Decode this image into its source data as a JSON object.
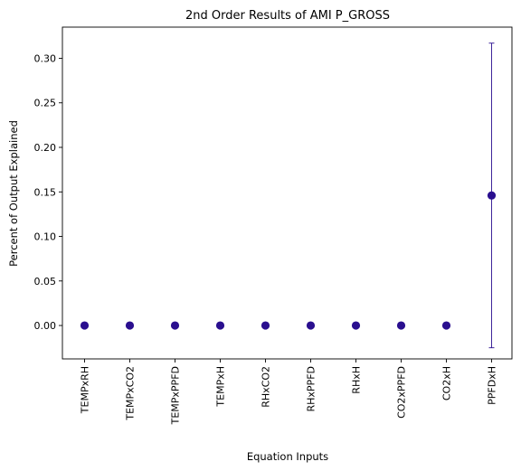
{
  "chart_data": {
    "type": "scatter",
    "title": "2nd Order Results of AMI P_GROSS",
    "xlabel": "Equation Inputs",
    "ylabel": "Percent of Output Explained",
    "categories": [
      "TEMPxRH",
      "TEMPxCO2",
      "TEMPxPPFD",
      "TEMPxH",
      "RHxCO2",
      "RHxPPFD",
      "RHxH",
      "CO2xPPFD",
      "CO2xH",
      "PPFDxH"
    ],
    "values": [
      0.0,
      0.0,
      0.0,
      0.0,
      0.0,
      0.0,
      0.0,
      0.0,
      0.0,
      0.146
    ],
    "error": [
      0.0,
      0.0,
      0.0,
      0.0,
      0.0,
      0.0,
      0.0,
      0.0,
      0.0,
      0.171
    ],
    "ylim": [
      -0.0375,
      0.335
    ],
    "yticks": [
      "0.00",
      "0.05",
      "0.10",
      "0.15",
      "0.20",
      "0.25",
      "0.30"
    ],
    "grid": false,
    "marker_color": "#2a0f8f",
    "error_color": "#2a0f8f"
  }
}
